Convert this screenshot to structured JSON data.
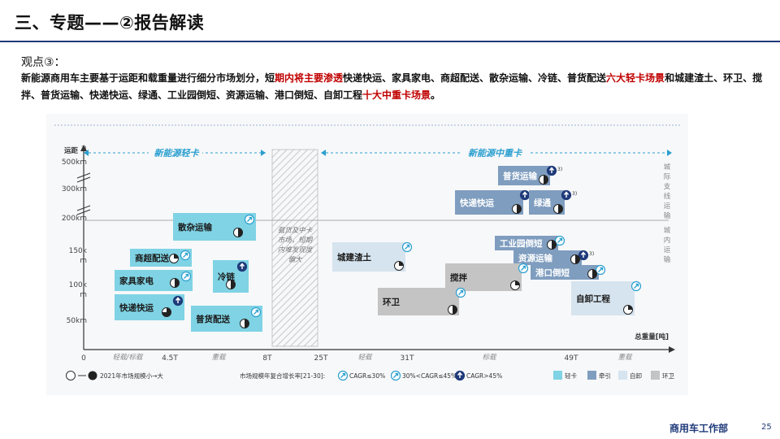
{
  "header": {
    "title": "三、专题——②报告解读"
  },
  "viewpoint": {
    "label": "观点③：",
    "parts": [
      {
        "text": "新能源商用车主要基于运距和载重量进行细分市场划分，短",
        "red": false
      },
      {
        "text": "期内将主要渗透",
        "red": true
      },
      {
        "text": "快递快运、家具家电、商超配送、散杂运输、冷链、普货配送",
        "red": false
      },
      {
        "text": "六大轻卡场景",
        "red": true
      },
      {
        "text": "和城建渣土、环卫、搅拌、普货运输、快递快运、绿通、工业园倒短、资源运输、港口倒短、自卸工程",
        "red": false
      },
      {
        "text": "十大中重卡场景",
        "red": true
      },
      {
        "text": "。",
        "red": false
      }
    ]
  },
  "diagram": {
    "light_truck_title": "新能源轻卡",
    "heavy_truck_title": "新能源中重卡",
    "y_axis_label": "运距",
    "y_axis_sup": "2)",
    "x_axis_label": "总重量[吨]",
    "y_ticks": [
      "500km",
      "300km",
      "200km",
      "150k",
      "m",
      "100k",
      "m",
      "50km"
    ],
    "x_ticks": [
      "0",
      "4.5T",
      "8T",
      "25T",
      "31T",
      "49T"
    ],
    "x_sub": [
      "轻载/标载",
      "重载",
      "轻载",
      "标载",
      "重载"
    ],
    "gap_note": [
      "载货及中卡",
      "市场，短期",
      "内难发现度",
      "偏大"
    ],
    "right_labels": {
      "intercity": [
        "城",
        "际",
        "支",
        "线",
        "运",
        "输"
      ],
      "city": [
        "城",
        "内",
        "运",
        "输"
      ]
    },
    "light_boxes": [
      {
        "label": "散杂运输",
        "sup": ""
      },
      {
        "label": "商超配送",
        "sup": ""
      },
      {
        "label": "家具家电",
        "sup": ""
      },
      {
        "label": "冷链",
        "sup": ""
      },
      {
        "label": "快递快运",
        "sup": ""
      },
      {
        "label": "普货配送",
        "sup": ""
      }
    ],
    "heavy_boxes": [
      {
        "label": "普货运输",
        "sup": "3)"
      },
      {
        "label": "快递快运",
        "sup": "3)"
      },
      {
        "label": "绿通",
        "sup": "3)"
      },
      {
        "label": "城建渣土",
        "sup": ""
      },
      {
        "label": "工业园倒短",
        "sup": ""
      },
      {
        "label": "资源运输",
        "sup": "3)"
      },
      {
        "label": "港口倒短",
        "sup": ""
      },
      {
        "label": "搅拌",
        "sup": ""
      },
      {
        "label": "环卫",
        "sup": ""
      },
      {
        "label": "自卸工程",
        "sup": ""
      }
    ],
    "legend": {
      "size_text": "2021年市场规模小→大",
      "cagr_title": "市场规模年复合增长率[21-30]:",
      "cagr_items": [
        "CAGR≤30%",
        "30%<CAGR≤45%",
        "CAGR>45%"
      ],
      "types": [
        "轻卡",
        "牵引",
        "自卸",
        "环卫"
      ]
    },
    "colors": {
      "light": "#7fd3e4",
      "tractor": "#7f9dbf",
      "dump": "#d6e4ef",
      "sanitation": "#c4c4c4"
    }
  },
  "footer": {
    "label": "商用车工作部",
    "page": "25"
  }
}
